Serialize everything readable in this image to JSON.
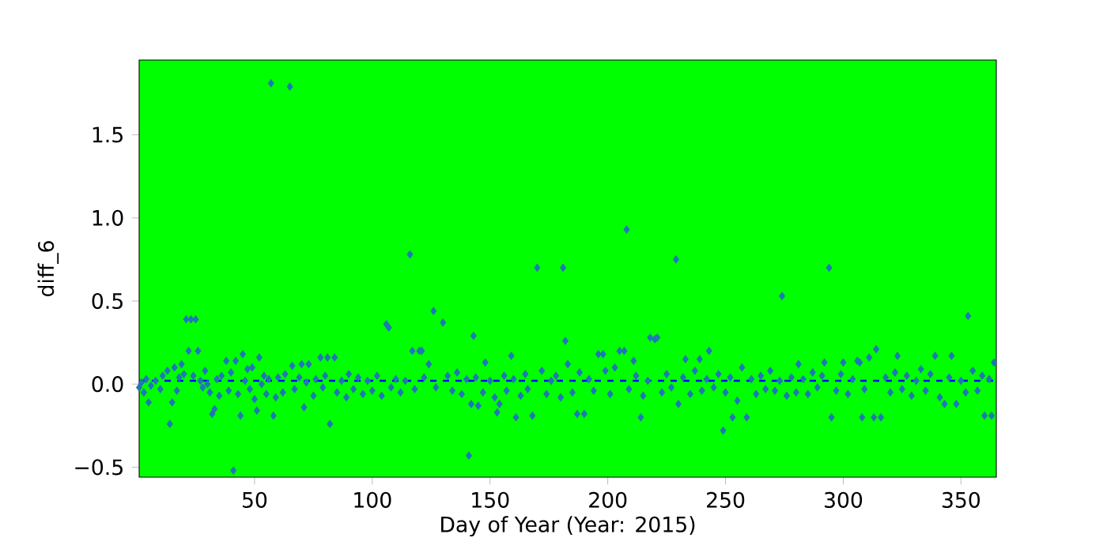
{
  "chart_data": {
    "type": "scatter",
    "xlabel": "Day of Year (Year: 2015)",
    "ylabel": "diff_6",
    "xlim": [
      1,
      365
    ],
    "ylim": [
      -0.56,
      1.95
    ],
    "xticks": [
      50,
      100,
      150,
      200,
      250,
      300,
      350
    ],
    "yticks": [
      {
        "value": -0.5,
        "label": "−0.5"
      },
      {
        "value": 0,
        "label": "0.0"
      },
      {
        "value": 0.5,
        "label": "0.5"
      },
      {
        "value": 1,
        "label": "1.0"
      },
      {
        "value": 1.5,
        "label": "1.5"
      }
    ],
    "marker": "diamond",
    "grid": false,
    "ref_lines": [
      {
        "axis": "y",
        "value": 0.02,
        "color": "#0000ff",
        "line_style": "dashed"
      }
    ],
    "series": [
      {
        "color": "#1f77b4",
        "x": [
          1,
          2,
          3,
          4,
          5,
          6,
          8,
          10,
          11,
          13,
          14,
          15,
          16,
          17,
          18,
          19,
          20,
          21,
          22,
          23,
          24,
          25,
          26,
          27,
          28,
          29,
          30,
          31,
          32,
          33,
          34,
          35,
          36,
          38,
          39,
          40,
          41,
          42,
          43,
          44,
          45,
          46,
          47,
          48,
          49,
          50,
          51,
          52,
          53,
          54,
          55,
          56,
          57,
          58,
          59,
          60,
          62,
          63,
          65,
          66,
          67,
          69,
          70,
          71,
          72,
          73,
          75,
          76,
          78,
          79,
          80,
          81,
          82,
          84,
          85,
          87,
          89,
          90,
          92,
          94,
          96,
          98,
          100,
          102,
          104,
          106,
          107,
          108,
          110,
          112,
          114,
          116,
          117,
          118,
          120,
          121,
          122,
          124,
          126,
          127,
          130,
          132,
          134,
          136,
          138,
          140,
          141,
          142,
          143,
          144,
          145,
          147,
          148,
          150,
          152,
          153,
          154,
          156,
          157,
          159,
          160,
          161,
          163,
          165,
          166,
          168,
          170,
          172,
          174,
          176,
          178,
          180,
          181,
          182,
          183,
          185,
          187,
          188,
          190,
          192,
          194,
          196,
          198,
          199,
          201,
          203,
          205,
          207,
          208,
          209,
          211,
          212,
          214,
          215,
          217,
          218,
          220,
          221,
          223,
          225,
          227,
          229,
          230,
          232,
          233,
          235,
          237,
          239,
          240,
          242,
          243,
          245,
          247,
          249,
          250,
          252,
          253,
          255,
          257,
          259,
          261,
          263,
          265,
          267,
          269,
          271,
          273,
          274,
          276,
          278,
          280,
          281,
          283,
          285,
          287,
          289,
          291,
          292,
          294,
          295,
          297,
          299,
          300,
          302,
          304,
          306,
          307,
          308,
          309,
          311,
          313,
          314,
          316,
          318,
          320,
          322,
          323,
          325,
          327,
          329,
          331,
          333,
          335,
          337,
          339,
          341,
          343,
          345,
          346,
          348,
          350,
          352,
          353,
          355,
          357,
          359,
          360,
          362,
          363,
          364
        ],
        "values": [
          -0.02,
          0.01,
          -0.05,
          0.03,
          -0.11,
          -0.01,
          0.02,
          -0.03,
          0.05,
          0.08,
          -0.24,
          -0.11,
          0.1,
          -0.04,
          0.04,
          0.12,
          0.06,
          0.39,
          0.2,
          0.39,
          0.05,
          0.39,
          0.2,
          0.02,
          -0.02,
          0.08,
          0.0,
          -0.05,
          -0.18,
          -0.15,
          0.03,
          -0.07,
          0.05,
          0.14,
          -0.04,
          0.07,
          -0.52,
          0.14,
          -0.06,
          -0.19,
          0.18,
          0.02,
          0.09,
          -0.03,
          0.1,
          -0.09,
          -0.16,
          0.16,
          0.0,
          0.05,
          -0.06,
          0.03,
          1.81,
          -0.19,
          -0.08,
          0.04,
          -0.05,
          0.06,
          1.79,
          0.11,
          -0.03,
          0.04,
          0.12,
          -0.14,
          0.01,
          0.12,
          -0.07,
          0.03,
          0.16,
          -0.02,
          0.05,
          0.16,
          -0.24,
          0.16,
          -0.05,
          0.02,
          -0.08,
          0.06,
          -0.03,
          0.04,
          -0.06,
          0.02,
          -0.04,
          0.05,
          -0.07,
          0.36,
          0.34,
          -0.02,
          0.03,
          -0.05,
          0.02,
          0.78,
          0.2,
          -0.03,
          0.2,
          0.2,
          0.04,
          0.12,
          0.44,
          -0.02,
          0.37,
          0.05,
          -0.04,
          0.07,
          -0.06,
          0.03,
          -0.43,
          -0.12,
          0.29,
          0.04,
          -0.13,
          -0.05,
          0.13,
          0.02,
          -0.08,
          -0.17,
          -0.12,
          0.05,
          -0.04,
          0.17,
          0.03,
          -0.2,
          -0.07,
          0.06,
          -0.03,
          -0.19,
          0.7,
          0.08,
          -0.06,
          0.02,
          0.05,
          -0.08,
          0.7,
          0.26,
          0.12,
          -0.05,
          -0.18,
          0.07,
          -0.18,
          0.03,
          -0.04,
          0.18,
          0.18,
          0.08,
          -0.06,
          0.1,
          0.2,
          0.2,
          0.93,
          -0.03,
          0.14,
          0.05,
          -0.2,
          -0.07,
          0.02,
          0.28,
          0.27,
          0.28,
          -0.05,
          0.06,
          -0.02,
          0.75,
          -0.12,
          0.04,
          0.15,
          -0.06,
          0.08,
          0.15,
          -0.04,
          0.03,
          0.2,
          -0.02,
          0.06,
          -0.28,
          -0.05,
          0.04,
          -0.2,
          -0.1,
          0.1,
          -0.2,
          0.03,
          -0.06,
          0.05,
          -0.03,
          0.08,
          -0.04,
          0.02,
          0.53,
          -0.07,
          0.04,
          -0.05,
          0.12,
          0.03,
          -0.06,
          0.07,
          -0.02,
          0.05,
          0.13,
          0.7,
          -0.2,
          -0.04,
          0.06,
          0.13,
          -0.06,
          0.03,
          0.14,
          0.13,
          -0.2,
          -0.03,
          0.16,
          -0.2,
          0.21,
          -0.2,
          0.04,
          -0.05,
          0.07,
          0.17,
          -0.03,
          0.05,
          -0.07,
          0.02,
          0.09,
          -0.04,
          0.06,
          0.17,
          -0.08,
          -0.12,
          0.04,
          0.17,
          -0.12,
          0.02,
          -0.05,
          0.41,
          0.08,
          -0.04,
          0.05,
          -0.19,
          0.03,
          -0.19,
          0.13
        ]
      }
    ]
  }
}
